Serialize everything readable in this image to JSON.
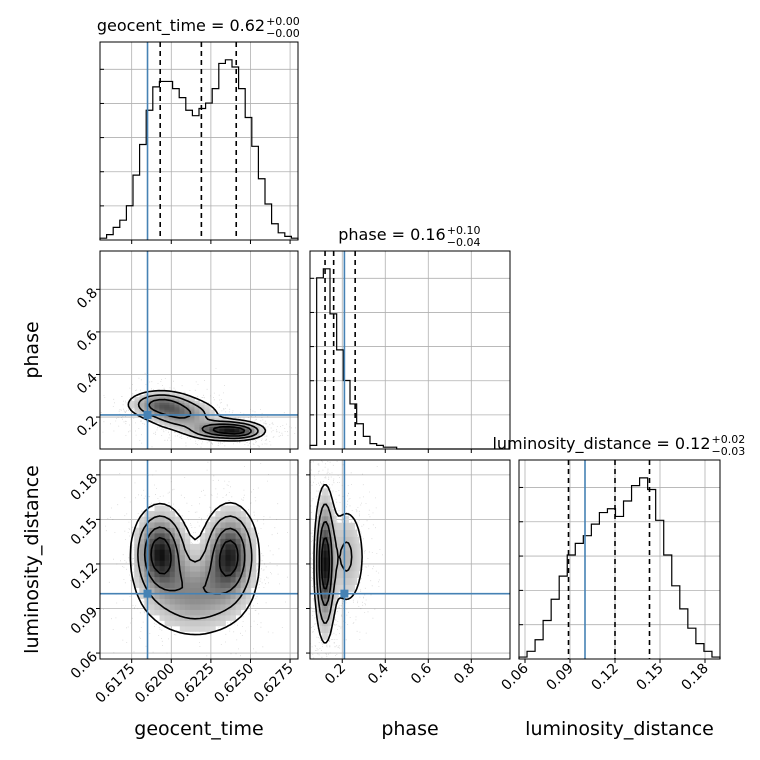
{
  "chart_data": {
    "type": "corner",
    "parameters": [
      "geocent_time",
      "phase",
      "luminosity_distance"
    ],
    "truths": {
      "geocent_time": 0.6185,
      "phase": 0.21,
      "luminosity_distance": 0.1
    },
    "grid": true,
    "axes": {
      "geocent_time": {
        "range": [
          0.6155,
          0.628
        ],
        "ticks": [
          0.6175,
          0.62,
          0.6225,
          0.625,
          0.6275
        ],
        "tick_labels": [
          "0.6175",
          "0.6200",
          "0.6225",
          "0.6250",
          "0.6275"
        ]
      },
      "phase": {
        "range": [
          0.05,
          0.98
        ],
        "ticks": [
          0.2,
          0.4,
          0.6,
          0.8
        ],
        "tick_labels": [
          "0.2",
          "0.4",
          "0.6",
          "0.8"
        ]
      },
      "luminosity_distance": {
        "range": [
          0.056,
          0.19
        ],
        "ticks": [
          0.06,
          0.09,
          0.12,
          0.15,
          0.18
        ],
        "tick_labels": [
          "0.06",
          "0.09",
          "0.12",
          "0.15",
          "0.18"
        ]
      }
    },
    "titles": [
      {
        "param": "geocent_time",
        "prefix": "geocent_time = 0.62",
        "plus": "+0.00",
        "minus": "−0.00"
      },
      {
        "param": "phase",
        "prefix": "phase = 0.16",
        "plus": "+0.10",
        "minus": "−0.04"
      },
      {
        "param": "luminosity_distance",
        "prefix": "luminosity_distance = 0.12",
        "plus": "+0.02",
        "minus": "−0.03"
      }
    ],
    "quantiles": {
      "geocent_time": [
        0.6193,
        0.6219,
        0.6241
      ],
      "phase": [
        0.12,
        0.16,
        0.26
      ],
      "luminosity_distance": [
        0.089,
        0.12,
        0.143
      ]
    },
    "histograms": {
      "geocent_time": {
        "edges_range": [
          0.6155,
          0.628
        ],
        "counts": [
          1,
          3,
          7,
          11,
          19,
          36,
          53,
          72,
          85,
          88,
          88,
          84,
          79,
          72,
          69,
          73,
          76,
          84,
          98,
          100,
          96,
          84,
          68,
          52,
          34,
          20,
          9,
          4,
          2,
          1
        ]
      },
      "phase": {
        "edges_range": [
          0.05,
          0.98
        ],
        "counts": [
          2,
          95,
          100,
          75,
          55,
          38,
          25,
          14,
          7,
          3,
          2,
          1,
          1,
          0,
          0,
          0,
          0,
          0,
          0,
          0,
          0,
          0,
          0,
          0,
          0,
          0,
          0,
          0,
          0,
          0
        ]
      },
      "luminosity_distance": {
        "edges_range": [
          0.056,
          0.19
        ],
        "counts": [
          1,
          4,
          10,
          20,
          31,
          43,
          54,
          60,
          64,
          70,
          76,
          78,
          74,
          82,
          90,
          94,
          88,
          72,
          54,
          38,
          26,
          16,
          8,
          4,
          1
        ]
      }
    },
    "densities": {
      "phase_vs_geocent_time": {
        "x": "geocent_time",
        "y": "phase",
        "modes": [
          {
            "x": 0.6193,
            "y": 0.26,
            "sx": 0.0011,
            "sy": 0.035,
            "w": 0.7
          },
          {
            "x": 0.6208,
            "y": 0.21,
            "sx": 0.0012,
            "sy": 0.04,
            "w": 0.6
          },
          {
            "x": 0.6233,
            "y": 0.14,
            "sx": 0.0012,
            "sy": 0.025,
            "w": 1.0
          },
          {
            "x": 0.6245,
            "y": 0.13,
            "sx": 0.0007,
            "sy": 0.02,
            "w": 0.4
          }
        ]
      },
      "luminosity_distance_vs_geocent_time": {
        "x": "geocent_time",
        "y": "luminosity_distance",
        "modes": [
          {
            "x": 0.6193,
            "y": 0.128,
            "sx": 0.0009,
            "sy": 0.016,
            "w": 1.0
          },
          {
            "x": 0.6237,
            "y": 0.127,
            "sx": 0.0009,
            "sy": 0.017,
            "w": 0.95
          },
          {
            "x": 0.6215,
            "y": 0.1,
            "sx": 0.0018,
            "sy": 0.016,
            "w": 0.55
          }
        ]
      },
      "luminosity_distance_vs_phase": {
        "x": "phase",
        "y": "luminosity_distance",
        "modes": [
          {
            "x": 0.12,
            "y": 0.12,
            "sx": 0.025,
            "sy": 0.026,
            "w": 1.0
          },
          {
            "x": 0.22,
            "y": 0.125,
            "sx": 0.05,
            "sy": 0.02,
            "w": 0.35
          }
        ]
      }
    }
  }
}
